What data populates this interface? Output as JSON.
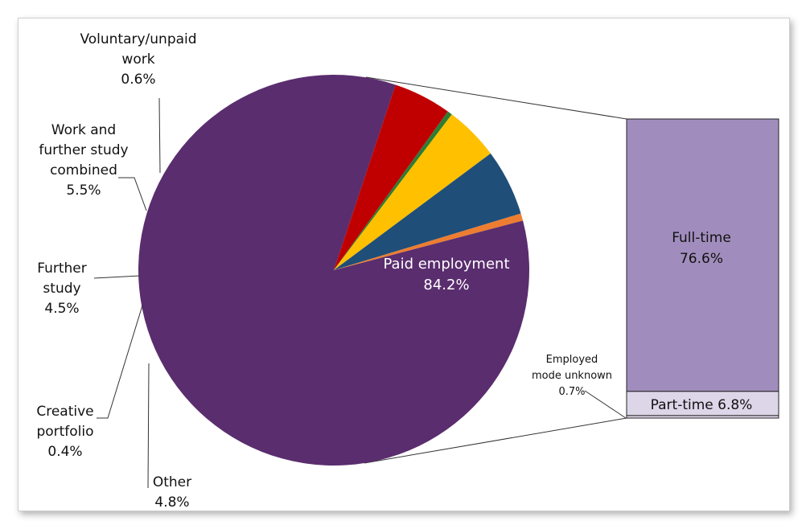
{
  "chart_data": {
    "type": "pie",
    "title": "",
    "slices": [
      {
        "key": "paid",
        "value": 84.2,
        "color": "#5a2d6e",
        "label_lines": [
          "Paid employment",
          "84.2%"
        ]
      },
      {
        "key": "other",
        "value": 4.8,
        "color": "#c00000",
        "label_lines": [
          "Other",
          "4.8%"
        ]
      },
      {
        "key": "creative",
        "value": 0.4,
        "color": "#2e7d32",
        "label_lines": [
          "Creative",
          "portfolio",
          "0.4%"
        ]
      },
      {
        "key": "further",
        "value": 4.5,
        "color": "#ffc000",
        "label_lines": [
          "Further",
          "study",
          "4.5%"
        ]
      },
      {
        "key": "work_study",
        "value": 5.5,
        "color": "#1f4e79",
        "label_lines": [
          "Work and",
          "further study",
          "combined",
          "5.5%"
        ]
      },
      {
        "key": "voluntary",
        "value": 0.6,
        "color": "#ed7d31",
        "label_lines": [
          "Voluntary/unpaid",
          "work",
          "0.6%"
        ]
      }
    ],
    "breakdown": {
      "of": "paid",
      "segments": [
        {
          "key": "fulltime",
          "value": 76.6,
          "color": "#a18dbd",
          "label_lines": [
            "Full-time",
            "76.6%"
          ]
        },
        {
          "key": "parttime",
          "value": 6.8,
          "color": "#ddd5e8",
          "label_lines": [
            "Part-time 6.8%"
          ]
        },
        {
          "key": "unknown",
          "value": 0.7,
          "color": "#ddd5e8",
          "label_lines": [
            "Employed",
            "mode unknown",
            "0.7%"
          ]
        }
      ]
    }
  }
}
